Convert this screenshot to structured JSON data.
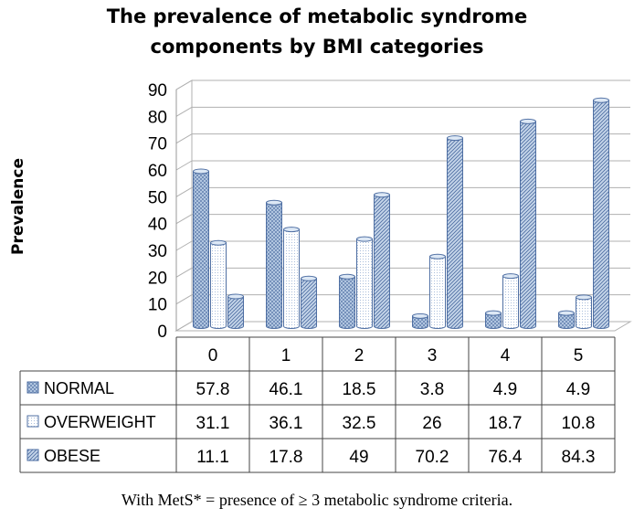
{
  "chart_data": {
    "type": "bar",
    "title_lines": [
      "The prevalence of metabolic syndrome",
      "components by BMI categories"
    ],
    "ylabel": "Prevalence",
    "xlabel": "",
    "categories": [
      "0",
      "1",
      "2",
      "3",
      "4",
      "5"
    ],
    "ylim": [
      0,
      90
    ],
    "yticks": [
      "0",
      "10",
      "20",
      "30",
      "40",
      "50",
      "60",
      "70",
      "80",
      "90"
    ],
    "grid": true,
    "three_d": true,
    "series": [
      {
        "name": "NORMAL",
        "values": [
          57.8,
          46.1,
          18.5,
          3.8,
          4.9,
          4.9
        ],
        "labels": [
          "57.8",
          "46.1",
          "18.5",
          "3.8",
          "4.9",
          "4.9"
        ],
        "pattern": "crosshatch"
      },
      {
        "name": "OVERWEIGHT",
        "values": [
          31.1,
          36.1,
          32.5,
          26,
          18.7,
          10.8
        ],
        "labels": [
          "31.1",
          "36.1",
          "32.5",
          "26",
          "18.7",
          "10.8"
        ],
        "pattern": "dots"
      },
      {
        "name": "OBESE",
        "values": [
          11.1,
          17.8,
          49,
          70.2,
          76.4,
          84.3
        ],
        "labels": [
          "11.1",
          "17.8",
          "49",
          "70.2",
          "76.4",
          "84.3"
        ],
        "pattern": "diagonal"
      }
    ],
    "colors": {
      "bar_fill": "#b9cde5",
      "bar_edge": "#4f6fa3",
      "bar_top": "#dde8f5",
      "grid": "#b0b0b0"
    },
    "footnote": "With MetS* = presence of ≥ 3 metabolic syndrome criteria."
  }
}
